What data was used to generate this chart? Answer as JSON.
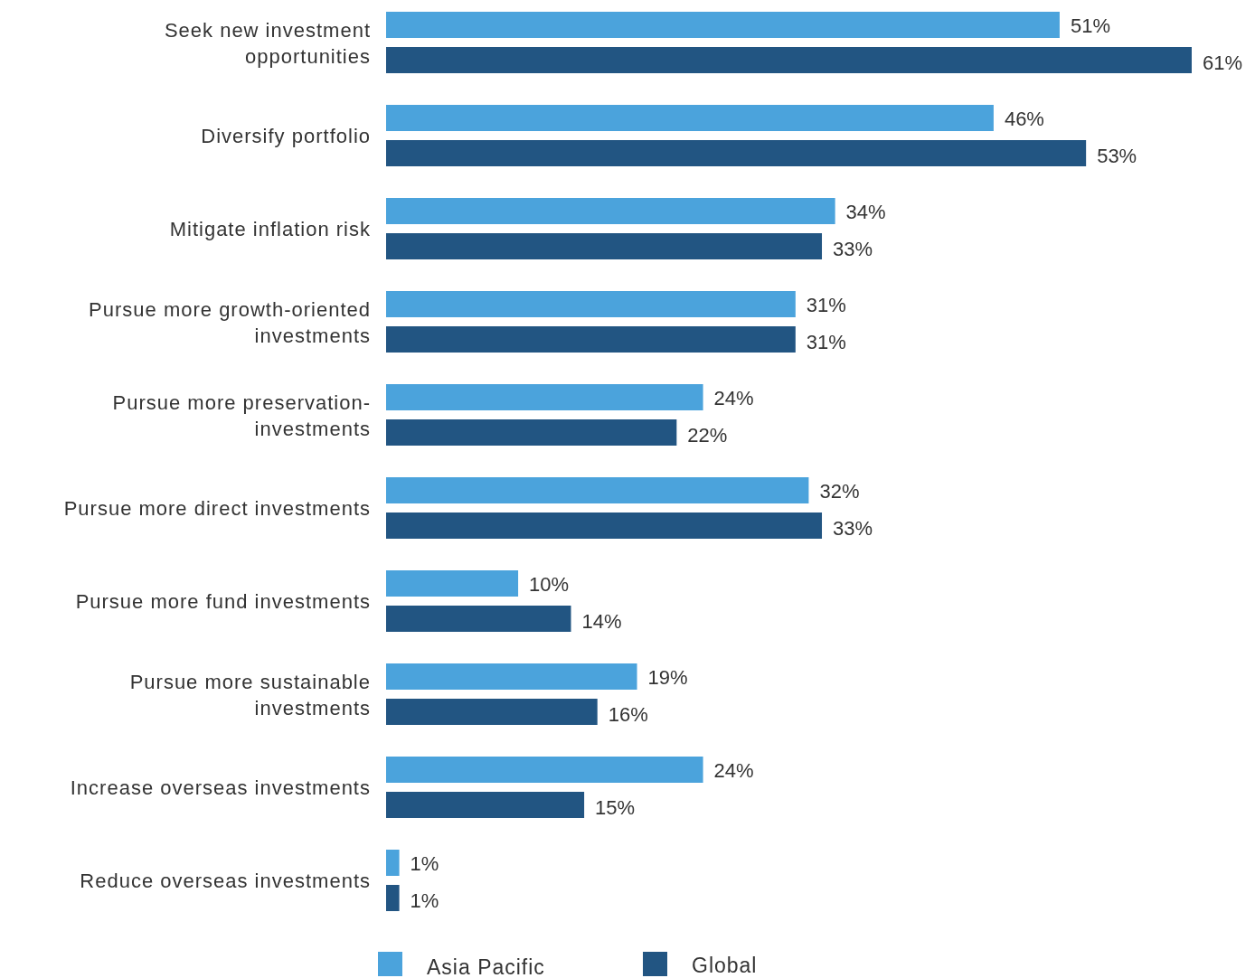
{
  "chart_data": {
    "type": "bar",
    "orientation": "horizontal",
    "legend": "bottom",
    "categories": [
      "Seek new investment\nopportunities",
      "Diversify portfolio",
      "Mitigate inflation risk",
      "Pursue more growth-oriented\ninvestments",
      "Pursue more preservation-\ninvestments",
      "Pursue more direct investments",
      "Pursue more fund investments",
      "Pursue more sustainable\ninvestments",
      "Increase overseas investments",
      "Reduce overseas investments"
    ],
    "series": [
      {
        "name": "Asia Pacific",
        "color": "#4ba3dc",
        "values": [
          51,
          46,
          34,
          31,
          24,
          32,
          10,
          19,
          24,
          1
        ],
        "value_labels": [
          "51%",
          "46%",
          "34%",
          "31%",
          "24%",
          "32%",
          "10%",
          "19%",
          "24%",
          "1%"
        ]
      },
      {
        "name": "Global",
        "color": "#225582",
        "values": [
          61,
          53,
          33,
          31,
          22,
          33,
          14,
          16,
          15,
          1
        ],
        "value_labels": [
          "61%",
          "53%",
          "33%",
          "31%",
          "22%",
          "33%",
          "14%",
          "16%",
          "15%",
          "1%"
        ]
      }
    ]
  }
}
